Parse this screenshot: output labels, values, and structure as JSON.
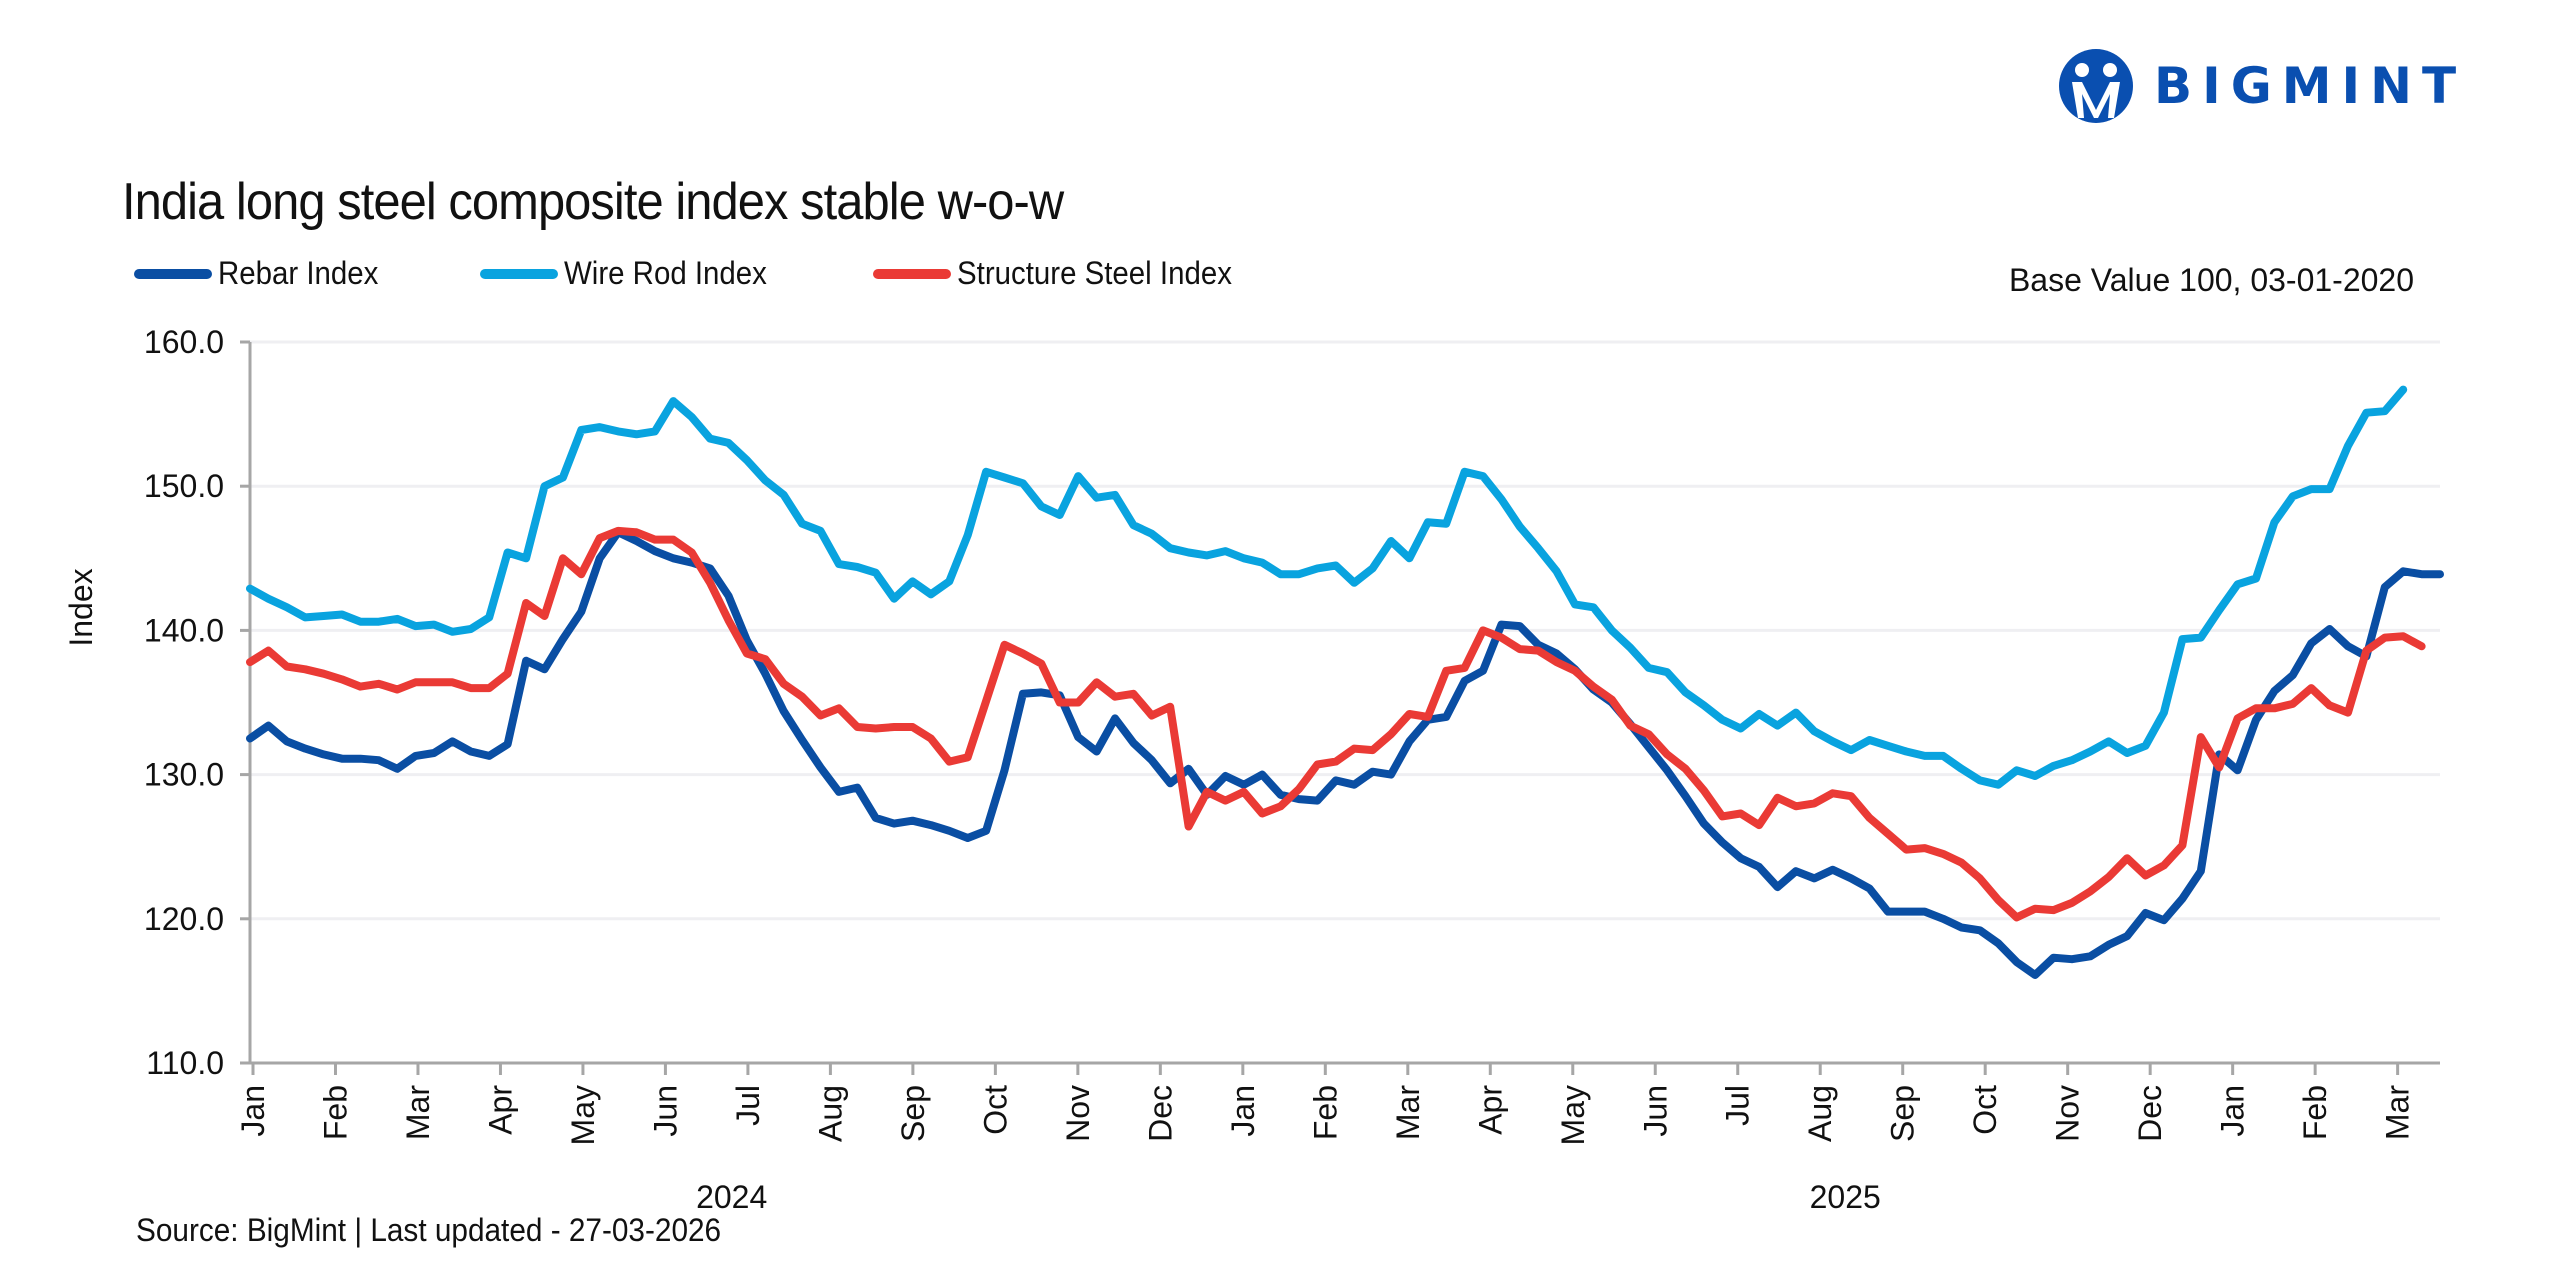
{
  "brand": {
    "name": "BIGMINT",
    "color": "#0a4fb0",
    "icon": "bigmint-logo-icon"
  },
  "header": {
    "title": "India long steel composite index stable w-o-w",
    "base_note": "Base Value 100, 03-01-2020"
  },
  "footer": {
    "source": "Source: BigMint | Last updated - 27-03-2026"
  },
  "chart_data": {
    "type": "line",
    "title": "India long steel composite index stable w-o-w",
    "xlabel": "",
    "ylabel": "Index",
    "ylim": [
      110,
      160
    ],
    "yticks": [
      "110.0",
      "120.0",
      "130.0",
      "140.0",
      "150.0",
      "160.0"
    ],
    "ytick_values": [
      110,
      120,
      130,
      140,
      150,
      160
    ],
    "grid": true,
    "legend_position": "top-left",
    "x_month_ticks": [
      "Jan",
      "Feb",
      "Mar",
      "Apr",
      "May",
      "Jun",
      "Jul",
      "Aug",
      "Sep",
      "Oct",
      "Nov",
      "Dec",
      "Jan",
      "Feb",
      "Mar",
      "Apr",
      "May",
      "Jun",
      "Jul",
      "Aug",
      "Sep",
      "Oct",
      "Nov",
      "Dec",
      "Jan",
      "Feb",
      "Mar"
    ],
    "x_year_groups": [
      {
        "label": "2024",
        "from_month_index": 0,
        "to_month_index": 11
      },
      {
        "label": "2025",
        "from_month_index": 12,
        "to_month_index": 26
      }
    ],
    "x_frequency": "weekly",
    "series": [
      {
        "name": "Rebar Index",
        "color": "#0a4ea3",
        "values": [
          132.5,
          133.4,
          132.3,
          131.8,
          131.4,
          131.1,
          131.1,
          131.0,
          130.4,
          131.3,
          131.5,
          132.3,
          131.6,
          131.3,
          132.1,
          137.9,
          137.3,
          139.4,
          141.3,
          145.0,
          146.8,
          146.2,
          145.5,
          145.0,
          144.7,
          144.3,
          142.4,
          139.3,
          137.0,
          134.4,
          132.4,
          130.5,
          128.8,
          129.1,
          127.0,
          126.6,
          126.8,
          126.5,
          126.1,
          125.6,
          126.1,
          130.3,
          135.6,
          135.7,
          135.5,
          132.6,
          131.6,
          133.9,
          132.2,
          131.0,
          129.4,
          130.4,
          128.6,
          129.9,
          129.3,
          130.0,
          128.6,
          128.3,
          128.2,
          129.6,
          129.3,
          130.2,
          130.0,
          132.3,
          133.8,
          134.0,
          136.5,
          137.2,
          140.4,
          140.3,
          139.0,
          138.4,
          137.3,
          135.9,
          135.0,
          133.5,
          131.9,
          130.3,
          128.5,
          126.6,
          125.3,
          124.2,
          123.6,
          122.2,
          123.3,
          122.8,
          123.4,
          122.8,
          122.1,
          120.5,
          120.5,
          120.5,
          120.0,
          119.4,
          119.2,
          118.3,
          117.0,
          116.1,
          117.3,
          117.2,
          117.4,
          118.2,
          118.8,
          120.4,
          119.9,
          121.4,
          123.3,
          131.4,
          130.3,
          133.8,
          135.8,
          136.9,
          139.1,
          140.1,
          138.9,
          138.2,
          143.0,
          144.1,
          143.9,
          143.9
        ]
      },
      {
        "name": "Wire Rod Index",
        "color": "#09a3df",
        "values": [
          142.9,
          142.2,
          141.6,
          140.9,
          141.0,
          141.1,
          140.6,
          140.6,
          140.8,
          140.3,
          140.4,
          139.9,
          140.1,
          140.9,
          145.4,
          145.0,
          150.0,
          150.6,
          153.9,
          154.1,
          153.8,
          153.6,
          153.8,
          155.9,
          154.8,
          153.3,
          153.0,
          151.8,
          150.4,
          149.4,
          147.4,
          146.9,
          144.6,
          144.4,
          144.0,
          142.2,
          143.4,
          142.5,
          143.4,
          146.6,
          151.0,
          150.6,
          150.2,
          148.6,
          148.0,
          150.7,
          149.2,
          149.4,
          147.3,
          146.7,
          145.7,
          145.4,
          145.2,
          145.5,
          145.0,
          144.7,
          143.9,
          143.9,
          144.3,
          144.5,
          143.3,
          144.3,
          146.2,
          145.0,
          147.5,
          147.4,
          151.0,
          150.7,
          149.1,
          147.2,
          145.7,
          144.1,
          141.8,
          141.6,
          140.0,
          138.8,
          137.4,
          137.1,
          135.7,
          134.8,
          133.8,
          133.2,
          134.2,
          133.4,
          134.3,
          133.0,
          132.3,
          131.7,
          132.4,
          132.0,
          131.6,
          131.3,
          131.3,
          130.4,
          129.6,
          129.3,
          130.3,
          129.9,
          130.6,
          131.0,
          131.6,
          132.3,
          131.5,
          132.0,
          134.3,
          139.4,
          139.5,
          141.4,
          143.2,
          143.6,
          147.5,
          149.3,
          149.8,
          149.8,
          152.8,
          155.1,
          155.2,
          156.7
        ]
      },
      {
        "name": "Structure Steel Index",
        "color": "#ea3a35",
        "values": [
          137.8,
          138.6,
          137.5,
          137.3,
          137.0,
          136.6,
          136.1,
          136.3,
          135.9,
          136.4,
          136.4,
          136.4,
          136.0,
          136.0,
          137.0,
          141.9,
          141.0,
          145.0,
          143.9,
          146.4,
          146.9,
          146.8,
          146.3,
          146.3,
          145.4,
          143.3,
          140.7,
          138.4,
          138.0,
          136.3,
          135.4,
          134.1,
          134.6,
          133.3,
          133.2,
          133.3,
          133.3,
          132.5,
          130.9,
          131.2,
          135.1,
          139.0,
          138.4,
          137.7,
          135.0,
          135.0,
          136.4,
          135.4,
          135.6,
          134.1,
          134.7,
          126.4,
          128.8,
          128.2,
          128.8,
          127.3,
          127.8,
          129.0,
          130.7,
          130.9,
          131.8,
          131.7,
          132.8,
          134.2,
          134.0,
          137.2,
          137.4,
          140.0,
          139.5,
          138.7,
          138.6,
          137.8,
          137.2,
          136.1,
          135.2,
          133.4,
          132.8,
          131.4,
          130.4,
          128.9,
          127.1,
          127.3,
          126.5,
          128.4,
          127.8,
          128.0,
          128.7,
          128.5,
          127.0,
          125.9,
          124.8,
          124.9,
          124.5,
          123.9,
          122.8,
          121.3,
          120.1,
          120.7,
          120.6,
          121.1,
          121.9,
          122.9,
          124.2,
          123.0,
          123.7,
          125.1,
          132.6,
          130.5,
          133.9,
          134.6,
          134.6,
          134.9,
          136.0,
          134.8,
          134.3,
          138.6,
          139.5,
          139.6,
          138.9
        ]
      }
    ]
  }
}
